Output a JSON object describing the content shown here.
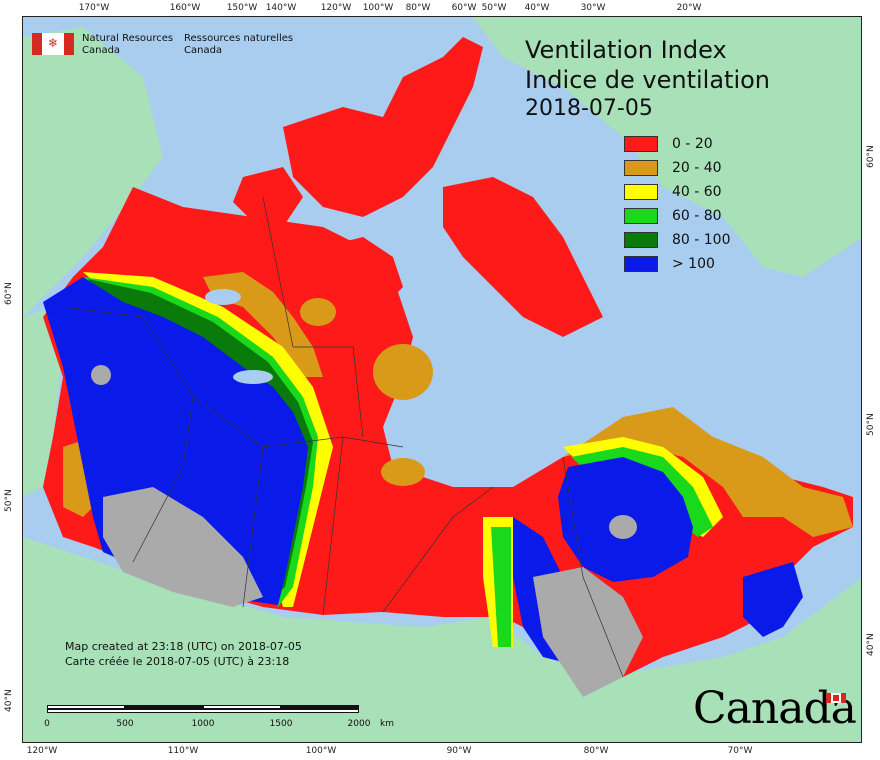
{
  "org": {
    "en_line1": "Natural Resources",
    "en_line2": "Canada",
    "fr_line1": "Ressources naturelles",
    "fr_line2": "Canada"
  },
  "title": {
    "en": "Ventilation Index",
    "fr": "Indice de ventilation",
    "date": "2018-07-05"
  },
  "legend": [
    {
      "label": "0 - 20",
      "color": "#ff1a1a"
    },
    {
      "label": "20 - 40",
      "color": "#d99a1a"
    },
    {
      "label": "40 - 60",
      "color": "#ffff00"
    },
    {
      "label": "60 - 80",
      "color": "#1ad81a"
    },
    {
      "label": "80 - 100",
      "color": "#0a7a0a"
    },
    {
      "label": "> 100",
      "color": "#0a1ae8"
    }
  ],
  "credit": {
    "en": "Map created at 23:18 (UTC) on 2018-07-05",
    "fr": "Carte créée le 2018-07-05 (UTC) à 23:18"
  },
  "scale": {
    "labels": [
      "0",
      "500",
      "1000",
      "1500",
      "2000",
      "km"
    ]
  },
  "wordmark": "Canada",
  "graticule": {
    "top": [
      "170°W",
      "160°W",
      "150°W",
      "140°W",
      "120°W",
      "100°W",
      "80°W",
      "60°W",
      "50°W",
      "40°W",
      "30°W",
      "20°W"
    ],
    "bottom": [
      "120°W",
      "110°W",
      "100°W",
      "90°W",
      "80°W",
      "70°W"
    ],
    "left": [
      "60°N",
      "50°N",
      "40°N"
    ],
    "right": [
      "60°N",
      "50°N",
      "40°N"
    ]
  },
  "colors": {
    "ocean": "#a9cdef",
    "land_other": "#a8e0b8",
    "no_data": "#aaaaaa"
  }
}
